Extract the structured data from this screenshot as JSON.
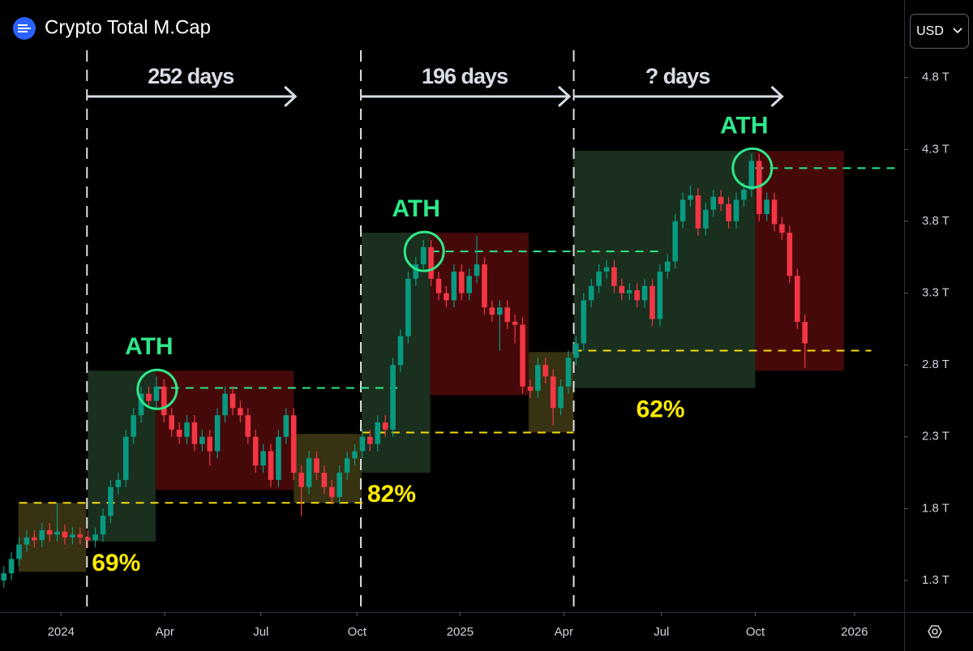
{
  "chart_data": {
    "type": "candlestick",
    "title": "Crypto Total M.Cap",
    "currency": "USD",
    "up_color": "#089981",
    "down_color": "#f23645",
    "ylim": [
      1.08,
      5.34
    ],
    "yticks": [
      {
        "value": 1.3,
        "label": "1.3 T"
      },
      {
        "value": 1.8,
        "label": "1.8 T"
      },
      {
        "value": 2.3,
        "label": "2.3 T"
      },
      {
        "value": 2.8,
        "label": "2.8 T"
      },
      {
        "value": 3.3,
        "label": "3.3 T"
      },
      {
        "value": 3.8,
        "label": "3.8 T"
      },
      {
        "value": 4.3,
        "label": "4.3 T"
      },
      {
        "value": 4.8,
        "label": "4.8 T"
      }
    ],
    "xlim": [
      -0.5,
      118
    ],
    "xticks": [
      {
        "value": 7.5,
        "label": "2024"
      },
      {
        "value": 21.1,
        "label": "Apr"
      },
      {
        "value": 33.7,
        "label": "Jul"
      },
      {
        "value": 46.3,
        "label": "Oct"
      },
      {
        "value": 59.8,
        "label": "2025"
      },
      {
        "value": 73.4,
        "label": "Apr"
      },
      {
        "value": 86.2,
        "label": "Jul"
      },
      {
        "value": 98.5,
        "label": "Oct"
      },
      {
        "value": 111.5,
        "label": "2026"
      }
    ],
    "ohlc": [
      [
        1.3,
        1.4,
        1.25,
        1.35
      ],
      [
        1.35,
        1.5,
        1.3,
        1.45
      ],
      [
        1.45,
        1.6,
        1.4,
        1.55
      ],
      [
        1.55,
        1.65,
        1.5,
        1.6
      ],
      [
        1.6,
        1.65,
        1.53,
        1.58
      ],
      [
        1.58,
        1.7,
        1.53,
        1.65
      ],
      [
        1.65,
        1.7,
        1.57,
        1.62
      ],
      [
        1.62,
        1.84,
        1.57,
        1.64
      ],
      [
        1.64,
        1.69,
        1.55,
        1.6
      ],
      [
        1.6,
        1.67,
        1.55,
        1.62
      ],
      [
        1.62,
        1.67,
        1.55,
        1.6
      ],
      [
        1.6,
        1.65,
        1.53,
        1.58
      ],
      [
        1.58,
        1.67,
        1.53,
        1.62
      ],
      [
        1.62,
        1.8,
        1.57,
        1.75
      ],
      [
        1.75,
        2.0,
        1.7,
        1.95
      ],
      [
        1.95,
        2.05,
        1.9,
        2.0
      ],
      [
        2.0,
        2.35,
        1.95,
        2.3
      ],
      [
        2.3,
        2.5,
        2.25,
        2.45
      ],
      [
        2.45,
        2.65,
        2.4,
        2.6
      ],
      [
        2.6,
        2.65,
        2.5,
        2.55
      ],
      [
        2.55,
        2.72,
        2.5,
        2.65
      ],
      [
        2.65,
        2.7,
        2.4,
        2.45
      ],
      [
        2.45,
        2.5,
        2.3,
        2.35
      ],
      [
        2.35,
        2.4,
        2.25,
        2.3
      ],
      [
        2.3,
        2.45,
        2.25,
        2.4
      ],
      [
        2.4,
        2.45,
        2.2,
        2.25
      ],
      [
        2.25,
        2.35,
        2.2,
        2.3
      ],
      [
        2.3,
        2.35,
        2.1,
        2.2
      ],
      [
        2.2,
        2.5,
        2.15,
        2.45
      ],
      [
        2.45,
        2.65,
        2.4,
        2.6
      ],
      [
        2.6,
        2.65,
        2.45,
        2.5
      ],
      [
        2.5,
        2.55,
        2.4,
        2.45
      ],
      [
        2.45,
        2.5,
        2.25,
        2.3
      ],
      [
        2.3,
        2.35,
        2.05,
        2.1
      ],
      [
        2.1,
        2.25,
        2.05,
        2.2
      ],
      [
        2.2,
        2.25,
        1.95,
        2.0
      ],
      [
        2.0,
        2.35,
        1.95,
        2.3
      ],
      [
        2.3,
        2.5,
        2.25,
        2.45
      ],
      [
        2.45,
        2.5,
        2.0,
        2.05
      ],
      [
        2.05,
        2.1,
        1.75,
        1.95
      ],
      [
        1.95,
        2.2,
        1.9,
        2.15
      ],
      [
        2.15,
        2.2,
        2.0,
        2.05
      ],
      [
        2.05,
        2.1,
        1.9,
        1.95
      ],
      [
        1.95,
        2.0,
        1.83,
        1.88
      ],
      [
        1.88,
        2.1,
        1.83,
        2.05
      ],
      [
        2.05,
        2.2,
        2.0,
        2.15
      ],
      [
        2.15,
        2.25,
        2.1,
        2.2
      ],
      [
        2.2,
        2.35,
        2.15,
        2.3
      ],
      [
        2.3,
        2.35,
        2.2,
        2.25
      ],
      [
        2.25,
        2.45,
        2.2,
        2.4
      ],
      [
        2.4,
        2.45,
        2.3,
        2.35
      ],
      [
        2.35,
        2.85,
        2.3,
        2.8
      ],
      [
        2.8,
        3.05,
        2.75,
        3.0
      ],
      [
        3.0,
        3.45,
        2.95,
        3.4
      ],
      [
        3.4,
        3.55,
        3.35,
        3.5
      ],
      [
        3.5,
        3.67,
        3.45,
        3.62
      ],
      [
        3.62,
        3.67,
        3.35,
        3.4
      ],
      [
        3.4,
        3.45,
        3.25,
        3.3
      ],
      [
        3.3,
        3.35,
        3.2,
        3.25
      ],
      [
        3.25,
        3.5,
        3.2,
        3.45
      ],
      [
        3.45,
        3.5,
        3.25,
        3.3
      ],
      [
        3.3,
        3.47,
        3.25,
        3.42
      ],
      [
        3.42,
        3.7,
        3.37,
        3.5
      ],
      [
        3.5,
        3.55,
        3.15,
        3.2
      ],
      [
        3.2,
        3.25,
        3.1,
        3.15
      ],
      [
        3.15,
        3.25,
        2.9,
        3.2
      ],
      [
        3.2,
        3.25,
        3.05,
        3.1
      ],
      [
        3.1,
        3.15,
        2.95,
        3.08
      ],
      [
        3.08,
        3.13,
        2.6,
        2.65
      ],
      [
        2.65,
        2.7,
        2.57,
        2.62
      ],
      [
        2.62,
        2.85,
        2.57,
        2.8
      ],
      [
        2.8,
        2.85,
        2.67,
        2.72
      ],
      [
        2.72,
        2.77,
        2.38,
        2.5
      ],
      [
        2.5,
        2.7,
        2.45,
        2.65
      ],
      [
        2.65,
        2.9,
        2.6,
        2.85
      ],
      [
        2.85,
        3.0,
        2.8,
        2.95
      ],
      [
        2.95,
        3.3,
        2.9,
        3.25
      ],
      [
        3.25,
        3.4,
        3.2,
        3.35
      ],
      [
        3.35,
        3.5,
        3.3,
        3.45
      ],
      [
        3.45,
        3.53,
        3.4,
        3.48
      ],
      [
        3.48,
        3.53,
        3.3,
        3.35
      ],
      [
        3.35,
        3.4,
        3.25,
        3.3
      ],
      [
        3.3,
        3.37,
        3.25,
        3.32
      ],
      [
        3.32,
        3.37,
        3.2,
        3.25
      ],
      [
        3.25,
        3.4,
        3.2,
        3.35
      ],
      [
        3.35,
        3.4,
        3.07,
        3.12
      ],
      [
        3.12,
        3.5,
        3.07,
        3.45
      ],
      [
        3.45,
        3.57,
        3.4,
        3.52
      ],
      [
        3.52,
        3.85,
        3.47,
        3.8
      ],
      [
        3.8,
        4.0,
        3.75,
        3.95
      ],
      [
        3.95,
        4.05,
        3.9,
        3.98
      ],
      [
        3.98,
        4.03,
        3.7,
        3.75
      ],
      [
        3.75,
        3.93,
        3.7,
        3.88
      ],
      [
        3.88,
        4.02,
        3.83,
        3.97
      ],
      [
        3.97,
        4.02,
        3.87,
        3.92
      ],
      [
        3.92,
        3.97,
        3.75,
        3.8
      ],
      [
        3.8,
        4.0,
        3.75,
        3.95
      ],
      [
        3.95,
        4.07,
        3.9,
        4.02
      ],
      [
        4.02,
        4.27,
        3.97,
        4.22
      ],
      [
        4.22,
        4.27,
        3.8,
        3.85
      ],
      [
        3.85,
        4.0,
        3.8,
        3.95
      ],
      [
        3.95,
        4.0,
        3.73,
        3.78
      ],
      [
        3.78,
        3.83,
        3.67,
        3.72
      ],
      [
        3.72,
        3.77,
        3.37,
        3.42
      ],
      [
        3.42,
        3.47,
        3.05,
        3.1
      ],
      [
        3.1,
        3.15,
        2.78,
        2.95
      ]
    ],
    "zones": [
      {
        "x": [
          1.9,
          10.8
        ],
        "y": [
          1.36,
          1.84
        ],
        "color": "#3a3512"
      },
      {
        "x": [
          11.0,
          19.9
        ],
        "y": [
          1.57,
          2.76
        ],
        "color": "#1b321f",
        "label": "69%"
      },
      {
        "x": [
          19.9,
          38.0
        ],
        "y": [
          1.93,
          2.76
        ],
        "color": "#4a0a0b"
      },
      {
        "x": [
          38.0,
          46.9
        ],
        "y": [
          1.84,
          2.32
        ],
        "color": "#3a3512"
      },
      {
        "x": [
          46.9,
          55.9
        ],
        "y": [
          2.05,
          3.72
        ],
        "color": "#1b321f",
        "label": "82%"
      },
      {
        "x": [
          55.9,
          68.8
        ],
        "y": [
          2.59,
          3.72
        ],
        "color": "#4a0a0b"
      },
      {
        "x": [
          68.8,
          74.7
        ],
        "y": [
          2.33,
          2.89
        ],
        "color": "#3a3512"
      },
      {
        "x": [
          74.7,
          98.5
        ],
        "y": [
          2.64,
          4.29
        ],
        "color": "#1b321f",
        "label": "62%"
      },
      {
        "x": [
          98.5,
          110.1
        ],
        "y": [
          2.76,
          4.29
        ],
        "color": "#4a0a0b"
      }
    ],
    "levels": [
      {
        "x": [
          20,
          51.6
        ],
        "y": 2.64,
        "color": "#2ee88a"
      },
      {
        "x": [
          2,
          47
        ],
        "y": 1.84,
        "color": "#f5d90a"
      },
      {
        "x": [
          56,
          86.1
        ],
        "y": 3.59,
        "color": "#2ee88a"
      },
      {
        "x": [
          47,
          74.7
        ],
        "y": 2.33,
        "color": "#f5d90a"
      },
      {
        "x": [
          98.5,
          117.5
        ],
        "y": 4.17,
        "color": "#2ee88a"
      },
      {
        "x": [
          74.7,
          113.7
        ],
        "y": 2.9,
        "color": "#f5d90a"
      }
    ],
    "ath": [
      {
        "x": 20,
        "y": 2.63,
        "label": "ATH"
      },
      {
        "x": 55,
        "y": 3.59,
        "label": "ATH"
      },
      {
        "x": 98,
        "y": 4.17,
        "label": "ATH"
      }
    ],
    "periods": [
      {
        "x": 10.9,
        "label": "252 days"
      },
      {
        "x": 46.8,
        "label": "196 days"
      },
      {
        "x": 74.7,
        "label": "? days"
      }
    ]
  }
}
